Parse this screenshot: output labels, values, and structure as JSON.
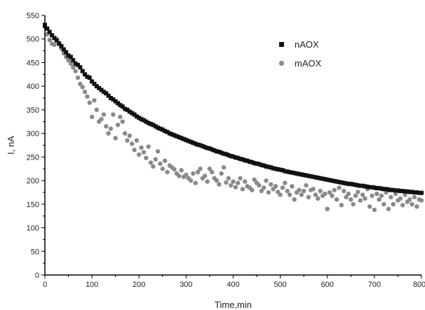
{
  "chart_data": {
    "type": "scatter",
    "title": "",
    "xlabel": "Time,min",
    "ylabel": "I, nA",
    "xlim": [
      0,
      800
    ],
    "ylim": [
      0,
      550
    ],
    "x_ticks": [
      0,
      100,
      200,
      300,
      400,
      500,
      600,
      700,
      800
    ],
    "y_ticks": [
      0,
      50,
      100,
      150,
      200,
      250,
      300,
      350,
      400,
      450,
      500,
      550
    ],
    "x_tick_labels": [
      "0",
      "100",
      "200",
      "300",
      "400",
      "500",
      "600",
      "700",
      "800"
    ],
    "y_tick_labels": [
      "0",
      "50",
      "100",
      "150",
      "200",
      "250",
      "300",
      "350",
      "400",
      "450",
      "500",
      "550"
    ],
    "grid": false,
    "legend_position": "top-right",
    "series": [
      {
        "name": "nAOX",
        "color": "#111111",
        "marker": "square",
        "x": [
          0,
          5,
          10,
          15,
          20,
          25,
          30,
          35,
          40,
          45,
          50,
          55,
          60,
          65,
          70,
          75,
          80,
          85,
          90,
          95,
          100,
          105,
          110,
          115,
          120,
          125,
          130,
          135,
          140,
          145,
          150,
          155,
          160,
          165,
          170,
          175,
          180,
          185,
          190,
          195,
          200,
          205,
          210,
          215,
          220,
          225,
          230,
          235,
          240,
          245,
          250,
          255,
          260,
          265,
          270,
          275,
          280,
          285,
          290,
          295,
          300,
          305,
          310,
          315,
          320,
          325,
          330,
          335,
          340,
          345,
          350,
          355,
          360,
          365,
          370,
          375,
          380,
          385,
          390,
          395,
          400,
          405,
          410,
          415,
          420,
          425,
          430,
          435,
          440,
          445,
          450,
          455,
          460,
          465,
          470,
          475,
          480,
          485,
          490,
          495,
          500,
          505,
          510,
          515,
          520,
          525,
          530,
          535,
          540,
          545,
          550,
          555,
          560,
          565,
          570,
          575,
          580,
          585,
          590,
          595,
          600,
          605,
          610,
          615,
          620,
          625,
          630,
          635,
          640,
          645,
          650,
          655,
          660,
          665,
          670,
          675,
          680,
          685,
          690,
          695,
          700,
          705,
          710,
          715,
          720,
          725,
          730,
          735,
          740,
          745,
          750,
          755,
          760,
          765,
          770,
          775,
          780,
          785,
          790,
          795,
          800
        ],
        "y": [
          530,
          522,
          515,
          508,
          502,
          497,
          490,
          485,
          478,
          472,
          465,
          462,
          455,
          448,
          445,
          440,
          432,
          425,
          420,
          418,
          410,
          405,
          400,
          396,
          392,
          388,
          385,
          380,
          375,
          372,
          368,
          364,
          360,
          357,
          352,
          350,
          346,
          343,
          340,
          336,
          333,
          330,
          328,
          325,
          322,
          320,
          318,
          315,
          312,
          310,
          308,
          305,
          303,
          300,
          298,
          296,
          294,
          292,
          290,
          288,
          286,
          284,
          282,
          280,
          278,
          276,
          275,
          273,
          271,
          269,
          268,
          266,
          264,
          262,
          261,
          259,
          257,
          256,
          254,
          252,
          251,
          249,
          248,
          246,
          245,
          243,
          242,
          240,
          239,
          237,
          236,
          235,
          233,
          232,
          230,
          229,
          228,
          226,
          225,
          224,
          223,
          222,
          220,
          219,
          218,
          217,
          216,
          215,
          214,
          213,
          212,
          211,
          210,
          209,
          208,
          207,
          206,
          205,
          204,
          203,
          202,
          201,
          200,
          199,
          198,
          197,
          196,
          195,
          194,
          193,
          193,
          192,
          191,
          190,
          189,
          189,
          188,
          187,
          186,
          186,
          185,
          184,
          184,
          183,
          182,
          182,
          181,
          180,
          180,
          179,
          179,
          178,
          178,
          177,
          177,
          176,
          176,
          175,
          175,
          174,
          174
        ]
      },
      {
        "name": "mAOX",
        "color": "#8a8a8a",
        "marker": "circle",
        "x": [
          0,
          5,
          10,
          15,
          20,
          25,
          30,
          35,
          40,
          45,
          50,
          55,
          60,
          65,
          70,
          75,
          80,
          85,
          90,
          95,
          100,
          105,
          110,
          115,
          120,
          125,
          130,
          135,
          140,
          145,
          150,
          155,
          160,
          165,
          170,
          175,
          180,
          185,
          190,
          195,
          200,
          205,
          210,
          215,
          220,
          225,
          230,
          235,
          240,
          245,
          250,
          255,
          260,
          265,
          270,
          275,
          280,
          285,
          290,
          295,
          300,
          305,
          310,
          315,
          320,
          325,
          330,
          335,
          340,
          345,
          350,
          355,
          360,
          365,
          370,
          375,
          380,
          385,
          390,
          395,
          400,
          405,
          410,
          415,
          420,
          425,
          430,
          435,
          440,
          445,
          450,
          455,
          460,
          465,
          470,
          475,
          480,
          485,
          490,
          495,
          500,
          505,
          510,
          515,
          520,
          525,
          530,
          535,
          540,
          545,
          550,
          555,
          560,
          565,
          570,
          575,
          580,
          585,
          590,
          595,
          600,
          605,
          610,
          615,
          620,
          625,
          630,
          635,
          640,
          645,
          650,
          655,
          660,
          665,
          670,
          675,
          680,
          685,
          690,
          695,
          700,
          705,
          710,
          715,
          720,
          725,
          730,
          735,
          740,
          745,
          750,
          755,
          760,
          765,
          770,
          775,
          780,
          785,
          790,
          795,
          800
        ],
        "y": [
          525,
          510,
          498,
          490,
          488,
          500,
          492,
          480,
          470,
          462,
          455,
          448,
          440,
          432,
          418,
          405,
          398,
          388,
          378,
          365,
          335,
          370,
          350,
          325,
          330,
          340,
          315,
          300,
          310,
          340,
          290,
          318,
          335,
          325,
          300,
          285,
          295,
          278,
          265,
          285,
          255,
          270,
          260,
          248,
          272,
          238,
          230,
          245,
          262,
          236,
          225,
          242,
          218,
          232,
          228,
          224,
          215,
          210,
          222,
          208,
          212,
          205,
          200,
          215,
          195,
          218,
          225,
          205,
          210,
          198,
          225,
          218,
          205,
          200,
          192,
          215,
          228,
          196,
          205,
          190,
          198,
          186,
          195,
          205,
          182,
          198,
          188,
          185,
          180,
          202,
          195,
          190,
          178,
          185,
          200,
          175,
          192,
          182,
          188,
          176,
          170,
          185,
          195,
          178,
          170,
          188,
          160,
          175,
          180,
          170,
          178,
          190,
          165,
          180,
          182,
          170,
          162,
          178,
          168,
          172,
          140,
          175,
          168,
          180,
          160,
          185,
          148,
          178,
          165,
          172,
          160,
          150,
          168,
          176,
          158,
          170,
          162,
          182,
          145,
          168,
          138,
          172,
          160,
          168,
          150,
          175,
          140,
          165,
          150,
          172,
          158,
          162,
          148,
          170,
          155,
          160,
          150,
          165,
          145,
          160,
          158
        ]
      }
    ]
  }
}
